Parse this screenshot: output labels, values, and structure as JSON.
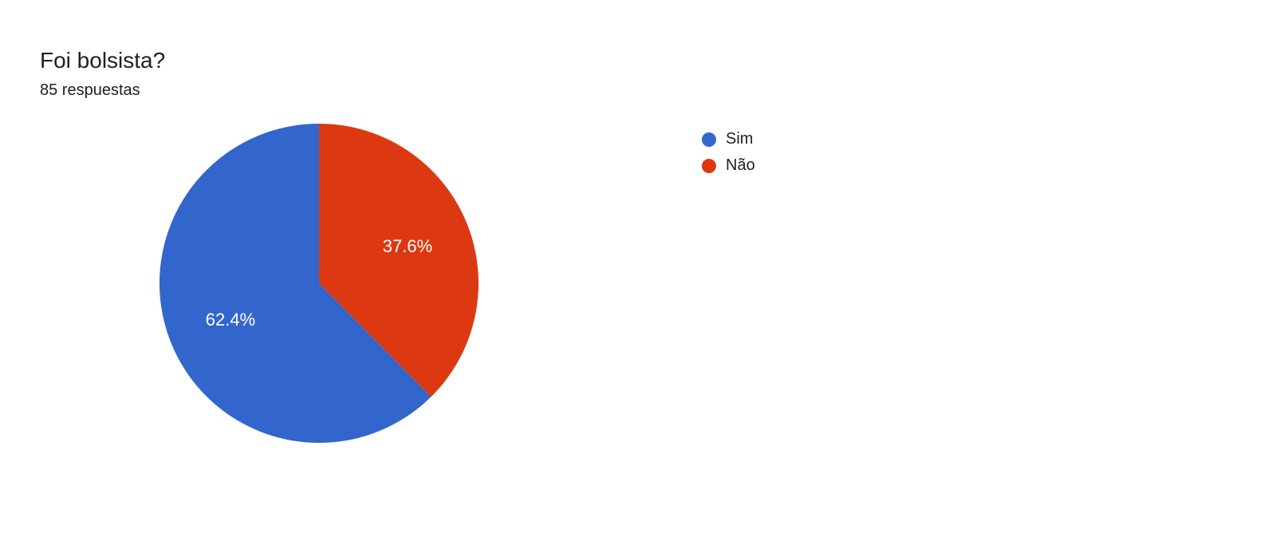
{
  "header": {
    "title": "Foi bolsista?",
    "subtitle": "85 respuestas"
  },
  "chart": {
    "type": "pie",
    "radius": 200,
    "background_color": "#ffffff",
    "title_fontsize": 28,
    "subtitle_fontsize": 20,
    "text_color": "#202124",
    "slice_label_color": "#ffffff",
    "slice_label_fontsize": 22,
    "start_angle_deg": 0,
    "slices": [
      {
        "label": "Sim",
        "value": 62.4,
        "display": "62.4%",
        "color": "#3366cc"
      },
      {
        "label": "Não",
        "value": 37.6,
        "display": "37.6%",
        "color": "#dc3912"
      }
    ],
    "legend": {
      "position": "right",
      "swatch_shape": "circle",
      "swatch_size": 18,
      "label_fontsize": 20,
      "items": [
        {
          "label": "Sim",
          "color": "#3366cc"
        },
        {
          "label": "Não",
          "color": "#dc3912"
        }
      ]
    }
  }
}
